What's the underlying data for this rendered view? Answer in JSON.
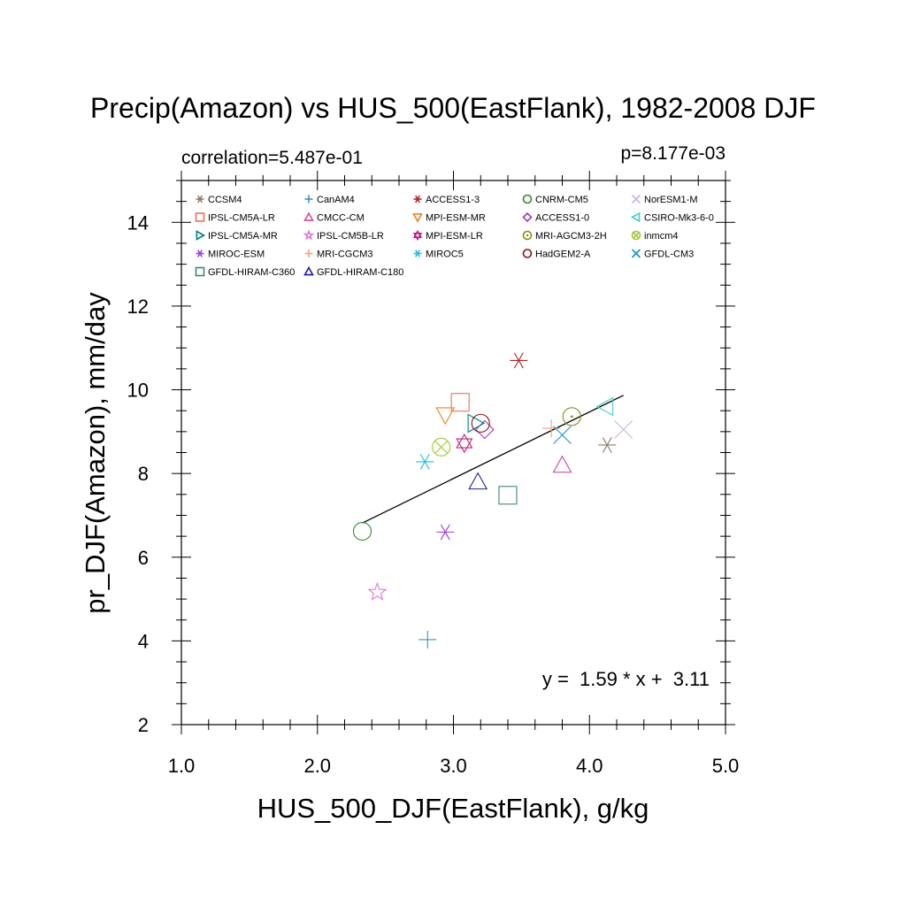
{
  "chart_data": {
    "type": "scatter",
    "title": "Precip(Amazon) vs HUS_500(EastFlank), 1982-2008 DJF",
    "subtitle_left": "correlation=5.487e-01",
    "subtitle_right": "p=8.177e-03",
    "xlabel": "HUS_500_DJF(EastFlank), g/kg",
    "ylabel": "pr_DJF(Amazon), mm/day",
    "xlim": [
      1.0,
      5.0
    ],
    "ylim": [
      2,
      15
    ],
    "xticks": [
      "1.0",
      "2.0",
      "3.0",
      "4.0",
      "5.0"
    ],
    "yticks": [
      "2",
      "4",
      "6",
      "8",
      "10",
      "12",
      "14"
    ],
    "regression_label": "y =  1.59 * x +  3.11",
    "regression": {
      "slope": 1.59,
      "intercept": 3.11,
      "x_range": [
        2.33,
        4.25
      ]
    },
    "legend_placement": "top-left (inside plot)",
    "series": [
      {
        "name": "CCSM4",
        "marker": "asterisk",
        "color": "#8a7a63",
        "x": 4.13,
        "y": 8.68
      },
      {
        "name": "CanAM4",
        "marker": "plus",
        "color": "#3a90c8",
        "x": 2.81,
        "y": 4.03
      },
      {
        "name": "ACCESS1-3",
        "marker": "asterisk",
        "color": "#b22222",
        "x": 3.48,
        "y": 10.7
      },
      {
        "name": "CNRM-CM5",
        "marker": "circle",
        "color": "#2e8b2e",
        "x": 2.33,
        "y": 6.62
      },
      {
        "name": "NorESM1-M",
        "marker": "cross",
        "color": "#c8b4d8",
        "x": 4.25,
        "y": 9.05
      },
      {
        "name": "IPSL-CM5A-LR",
        "marker": "square",
        "color": "#f07050",
        "x": 3.05,
        "y": 9.7
      },
      {
        "name": "CMCC-CM",
        "marker": "triangle-up",
        "color": "#d04aa0",
        "x": 3.8,
        "y": 8.2
      },
      {
        "name": "MPI-ESM-MR",
        "marker": "triangle-down",
        "color": "#f08020",
        "x": 2.94,
        "y": 9.4
      },
      {
        "name": "ACCESS1-0",
        "marker": "diamond",
        "color": "#9a3ac8",
        "x": 3.23,
        "y": 9.05
      },
      {
        "name": "CSIRO-Mk3-6-0",
        "marker": "triangle-left",
        "color": "#40d0c8",
        "x": 4.12,
        "y": 9.6
      },
      {
        "name": "IPSL-CM5A-MR",
        "marker": "triangle-right",
        "color": "#008080",
        "x": 3.16,
        "y": 9.2
      },
      {
        "name": "IPSL-CM5B-LR",
        "marker": "star",
        "color": "#e078d8",
        "x": 2.44,
        "y": 5.16
      },
      {
        "name": "MPI-ESM-LR",
        "marker": "hexagram",
        "color": "#c02080",
        "x": 3.08,
        "y": 8.72
      },
      {
        "name": "MRI-AGCM3-2H",
        "marker": "circle-dot",
        "color": "#8a8a10",
        "x": 3.87,
        "y": 9.36
      },
      {
        "name": "inmcm4",
        "marker": "circle-x",
        "color": "#a0c830",
        "x": 2.91,
        "y": 8.63
      },
      {
        "name": "MIROC-ESM",
        "marker": "asterisk",
        "color": "#9a3ae0",
        "x": 2.94,
        "y": 6.6
      },
      {
        "name": "MRI-CGCM3",
        "marker": "plus",
        "color": "#f0a080",
        "x": 3.72,
        "y": 9.08
      },
      {
        "name": "MIROC5",
        "marker": "asterisk",
        "color": "#20b8e8",
        "x": 2.79,
        "y": 8.28
      },
      {
        "name": "HadGEM2-A",
        "marker": "circle",
        "color": "#8a1010",
        "x": 3.2,
        "y": 9.2
      },
      {
        "name": "GFDL-CM3",
        "marker": "cross",
        "color": "#1090d0",
        "x": 3.8,
        "y": 8.92
      },
      {
        "name": "GFDL-HIRAM-C360",
        "marker": "square",
        "color": "#3a8a70",
        "x": 3.4,
        "y": 7.48
      },
      {
        "name": "GFDL-HIRAM-C180",
        "marker": "triangle-up",
        "color": "#1c1ca8",
        "x": 3.18,
        "y": 7.8
      }
    ]
  }
}
